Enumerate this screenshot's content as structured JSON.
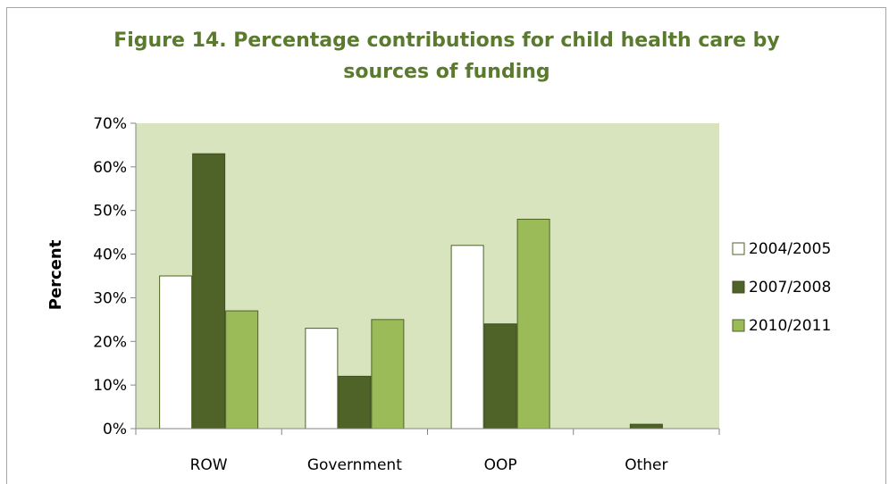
{
  "chart_data": {
    "type": "bar",
    "title_line1": "Figure 14.  Percentage contributions for child health care by",
    "title_line2": "sources of funding",
    "xlabel": "",
    "ylabel": "Percent",
    "categories": [
      "ROW",
      "Government",
      "OOP",
      "Other"
    ],
    "series": [
      {
        "name": "2004/2005",
        "values": [
          35,
          23,
          42,
          0
        ],
        "color": "#ffffff",
        "stroke": "#4f6228"
      },
      {
        "name": "2007/2008",
        "values": [
          63,
          12,
          24,
          1
        ],
        "color": "#4f6228",
        "stroke": "#3f4f20"
      },
      {
        "name": "2010/2011",
        "values": [
          27,
          25,
          48,
          0
        ],
        "color": "#9bbb59",
        "stroke": "#4f6228"
      }
    ],
    "ylim": [
      0,
      70
    ],
    "yticks": [
      "0%",
      "10%",
      "20%",
      "30%",
      "40%",
      "50%",
      "60%",
      "70%"
    ],
    "plot_background": "#d7e4bd",
    "legend_position": "right",
    "grid": false
  }
}
